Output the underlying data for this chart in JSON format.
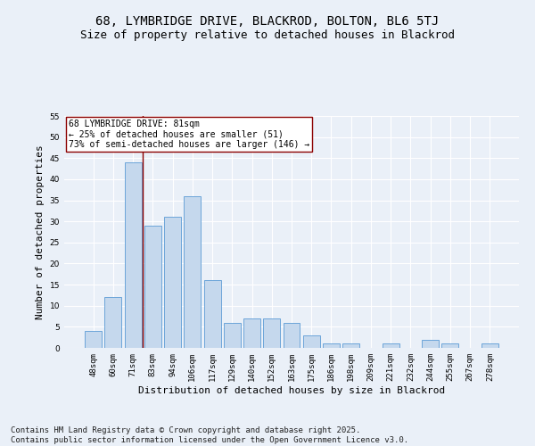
{
  "title": "68, LYMBRIDGE DRIVE, BLACKROD, BOLTON, BL6 5TJ",
  "subtitle": "Size of property relative to detached houses in Blackrod",
  "xlabel": "Distribution of detached houses by size in Blackrod",
  "ylabel": "Number of detached properties",
  "bar_color": "#c5d8ed",
  "bar_edge_color": "#5b9bd5",
  "background_color": "#eaf0f8",
  "grid_color": "#ffffff",
  "categories": [
    "48sqm",
    "60sqm",
    "71sqm",
    "83sqm",
    "94sqm",
    "106sqm",
    "117sqm",
    "129sqm",
    "140sqm",
    "152sqm",
    "163sqm",
    "175sqm",
    "186sqm",
    "198sqm",
    "209sqm",
    "221sqm",
    "232sqm",
    "244sqm",
    "255sqm",
    "267sqm",
    "278sqm"
  ],
  "values": [
    4,
    12,
    44,
    29,
    31,
    36,
    16,
    6,
    7,
    7,
    6,
    3,
    1,
    1,
    0,
    1,
    0,
    2,
    1,
    0,
    1
  ],
  "ylim": [
    0,
    55
  ],
  "yticks": [
    0,
    5,
    10,
    15,
    20,
    25,
    30,
    35,
    40,
    45,
    50,
    55
  ],
  "marker_label_line1": "68 LYMBRIDGE DRIVE: 81sqm",
  "marker_label_line2": "← 25% of detached houses are smaller (51)",
  "marker_label_line3": "73% of semi-detached houses are larger (146) →",
  "footer": "Contains HM Land Registry data © Crown copyright and database right 2025.\nContains public sector information licensed under the Open Government Licence v3.0.",
  "title_fontsize": 10,
  "subtitle_fontsize": 9,
  "annotation_fontsize": 7,
  "footer_fontsize": 6.5,
  "ylabel_fontsize": 8,
  "xlabel_fontsize": 8,
  "tick_fontsize": 6.5
}
